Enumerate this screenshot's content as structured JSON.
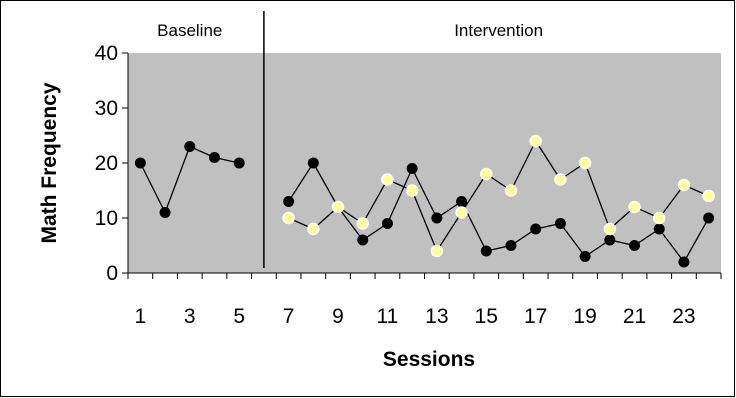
{
  "chart_data": {
    "type": "line",
    "title": "",
    "xlabel": "Sessions",
    "ylabel": "Math Frequency",
    "ylim": [
      0,
      40
    ],
    "xlim": [
      0.5,
      24.5
    ],
    "y_ticks": [
      "0",
      "10",
      "20",
      "30",
      "40"
    ],
    "x_tick_labels": [
      "1",
      "3",
      "5",
      "7",
      "9",
      "11",
      "13",
      "15",
      "17",
      "19",
      "21",
      "23"
    ],
    "x_tick_positions": [
      1,
      3,
      5,
      7,
      9,
      11,
      13,
      15,
      17,
      19,
      21,
      23
    ],
    "phases": [
      {
        "label": "Baseline",
        "start": 1,
        "end": 5
      },
      {
        "label": "Intervention",
        "start": 7,
        "end": 24
      }
    ],
    "phase_line_at": 6,
    "grid": false,
    "colors": {
      "plot_background": "#c0c0c0",
      "series_black": "#000000",
      "series_yellow_fill": "#ffff99",
      "series_yellow_edge": "#ffffff"
    },
    "series": [
      {
        "style": "black",
        "segments": [
          {
            "x": [
              1,
              2,
              3,
              4,
              5
            ],
            "y": [
              20,
              11,
              23,
              21,
              20
            ]
          },
          {
            "x": [
              7,
              8,
              9,
              10,
              11,
              12,
              13,
              14,
              15,
              16,
              17,
              18,
              19,
              20,
              21,
              22,
              23,
              24
            ],
            "y": [
              13,
              20,
              12,
              6,
              9,
              19,
              10,
              13,
              4,
              5,
              8,
              9,
              3,
              6,
              5,
              8,
              2,
              10
            ]
          }
        ]
      },
      {
        "style": "yellow",
        "segments": [
          {
            "x": [
              7,
              8,
              9,
              10,
              11,
              12,
              13,
              14,
              15,
              16,
              17,
              18,
              19,
              20,
              21,
              22,
              23,
              24
            ],
            "y": [
              10,
              8,
              12,
              9,
              17,
              15,
              4,
              11,
              18,
              15,
              24,
              17,
              20,
              8,
              12,
              10,
              16,
              14
            ]
          }
        ]
      }
    ]
  }
}
